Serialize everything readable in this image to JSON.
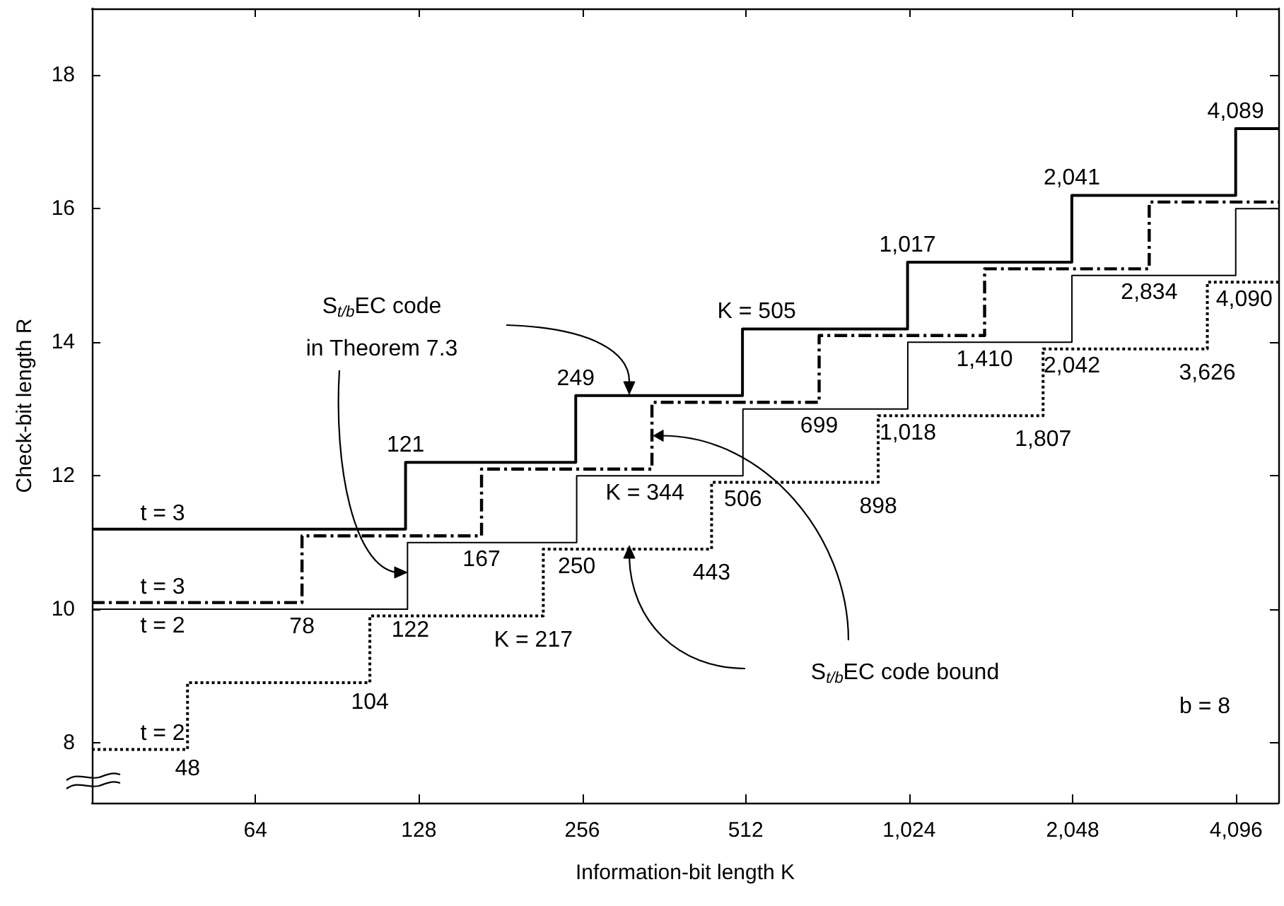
{
  "chart_data": {
    "type": "step",
    "xlabel": "Information-bit length K",
    "ylabel": "Check-bit length R",
    "log": "x",
    "xlim": [
      32,
      4900
    ],
    "xticks": [
      64,
      128,
      256,
      512,
      {
        "value": 1024,
        "label": "1,024"
      },
      {
        "value": 2048,
        "label": "2,048"
      },
      {
        "value": 4096,
        "label": "4,096"
      }
    ],
    "ylim": [
      7.1,
      19
    ],
    "yticks": [
      8,
      10,
      12,
      14,
      16,
      18
    ],
    "grid": false,
    "legend": false,
    "marker": "none",
    "series": [
      {
        "name": "t = 3",
        "color": "#000000",
        "line_style": "solid",
        "x": [
          32,
          121,
          249,
          505,
          1017,
          2041,
          4089,
          4900
        ],
        "values": [
          11.2,
          12.2,
          13.2,
          14.2,
          15.2,
          16.2,
          17.2,
          17.2
        ]
      },
      {
        "name": "t = 3",
        "color": "#000000",
        "line_style": "dashed",
        "x": [
          32,
          78,
          167,
          344,
          699,
          1410,
          2834,
          4900
        ],
        "values": [
          10.1,
          11.1,
          12.1,
          13.1,
          14.1,
          15.1,
          16.1,
          16.1
        ]
      },
      {
        "name": "t = 2",
        "color": "#000000",
        "line_style": "solid",
        "x": [
          32,
          122,
          250,
          506,
          1018,
          2042,
          4090,
          4900
        ],
        "values": [
          10,
          11,
          12,
          13,
          14,
          15,
          16,
          16
        ]
      },
      {
        "name": "t = 2",
        "color": "#000000",
        "line_style": "dotted",
        "x": [
          32,
          48,
          104,
          217,
          443,
          898,
          1807,
          3626,
          4900
        ],
        "values": [
          7.9,
          8.9,
          9.9,
          10.9,
          11.9,
          12.9,
          13.9,
          14.9,
          14.9
        ]
      }
    ],
    "annotations": [
      {
        "text": "121",
        "x": 121,
        "y": 12.2
      },
      {
        "text": "249",
        "x": 249,
        "y": 13.2
      },
      {
        "text": "K = 505",
        "x": 505,
        "y": 14.2
      },
      {
        "text": "1,017",
        "x": 1017,
        "y": 15.2
      },
      {
        "text": "2,041",
        "x": 2041,
        "y": 16.2
      },
      {
        "text": "4,089",
        "x": 4089,
        "y": 17.2
      },
      {
        "text": "78",
        "x": 78,
        "y": 10.1
      },
      {
        "text": "167",
        "x": 167,
        "y": 11.1
      },
      {
        "text": "K = 344",
        "x": 344,
        "y": 12.1
      },
      {
        "text": "699",
        "x": 699,
        "y": 13.1
      },
      {
        "text": "1,410",
        "x": 1410,
        "y": 14.1
      },
      {
        "text": "2,834",
        "x": 2834,
        "y": 15.1
      },
      {
        "text": "122",
        "x": 122,
        "y": 10
      },
      {
        "text": "250",
        "x": 250,
        "y": 11
      },
      {
        "text": "506",
        "x": 506,
        "y": 12
      },
      {
        "text": "1,018",
        "x": 1018,
        "y": 13
      },
      {
        "text": "2,042",
        "x": 2042,
        "y": 14
      },
      {
        "text": "4,090",
        "x": 4090,
        "y": 15
      },
      {
        "text": "48",
        "x": 48,
        "y": 7.9
      },
      {
        "text": "104",
        "x": 104,
        "y": 8.9
      },
      {
        "text": "K = 217",
        "x": 217,
        "y": 9.9
      },
      {
        "text": "443",
        "x": 443,
        "y": 10.9
      },
      {
        "text": "898",
        "x": 898,
        "y": 11.9
      },
      {
        "text": "1,807",
        "x": 1807,
        "y": 12.9
      },
      {
        "text": "3,626",
        "x": 3626,
        "y": 13.9
      },
      "S$_{t/b}$EC code\nin Theorem 7.3",
      {
        "text": "S$_{t/b}$EC code bound",
        "x": 344,
        "y": 12.6
      },
      "b = 8"
    ]
  }
}
